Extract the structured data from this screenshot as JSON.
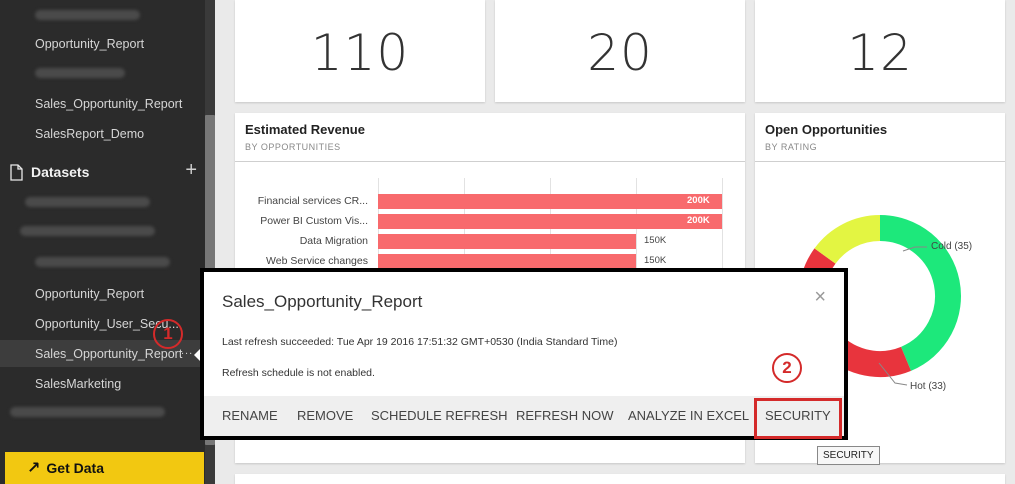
{
  "sidebar": {
    "reports": [
      "Opportunity_Report",
      "Sales_Opportunity_Report",
      "SalesReport_Demo"
    ],
    "datasets_heading": "Datasets",
    "add_icon": "+",
    "datasets": [
      "Opportunity_Report",
      "Opportunity_User_Secu...",
      "Sales_Opportunity_Report",
      "SalesMarketing"
    ],
    "ellipsis": "...",
    "get_data": "Get Data",
    "get_data_icon": "↗"
  },
  "kpis": [
    "110",
    "20",
    "12"
  ],
  "estimated_revenue": {
    "title": "Estimated Revenue",
    "subtitle": "BY OPPORTUNITIES"
  },
  "open_opportunities": {
    "title": "Open Opportunities",
    "subtitle": "BY RATING",
    "labels": {
      "cold": "Cold (35)",
      "hot": "Hot (33)"
    }
  },
  "chart_data": [
    {
      "type": "bar",
      "title": "Estimated Revenue",
      "subtitle": "BY OPPORTUNITIES",
      "categories": [
        "Financial services CR...",
        "Power BI Custom Vis...",
        "Data Migration",
        "Web Service changes"
      ],
      "values": [
        200000,
        200000,
        150000,
        150000
      ],
      "data_labels": [
        "200K",
        "200K",
        "150K",
        "150K"
      ],
      "color": "#f86a6d",
      "xlim": [
        0,
        200000
      ]
    },
    {
      "type": "pie",
      "title": "Open Opportunities",
      "subtitle": "BY RATING",
      "slices": [
        {
          "name": "Cold",
          "value": 35,
          "label": "Cold (35)",
          "color": "#1de87b"
        },
        {
          "name": "Hot",
          "value": 33,
          "label": "Hot (33)",
          "color": "#e8343d"
        },
        {
          "name": "",
          "value": 12,
          "color": "#e3f542"
        }
      ]
    }
  ],
  "popup": {
    "title": "Sales_Opportunity_Report",
    "last_refresh": "Last refresh succeeded: Tue Apr 19 2016 17:51:32 GMT+0530 (India Standard Time)",
    "schedule": "Refresh schedule is not enabled.",
    "close_icon": "×",
    "actions": [
      "RENAME",
      "REMOVE",
      "SCHEDULE REFRESH",
      "REFRESH NOW",
      "ANALYZE IN EXCEL",
      "SECURITY"
    ]
  },
  "markers": [
    "1",
    "2"
  ],
  "tooltip": "SECURITY",
  "colors": {
    "accent": "#f2c811",
    "bar": "#f86a6d",
    "annotation": "#d42a2a",
    "sidebar": "#2b2b2b"
  }
}
